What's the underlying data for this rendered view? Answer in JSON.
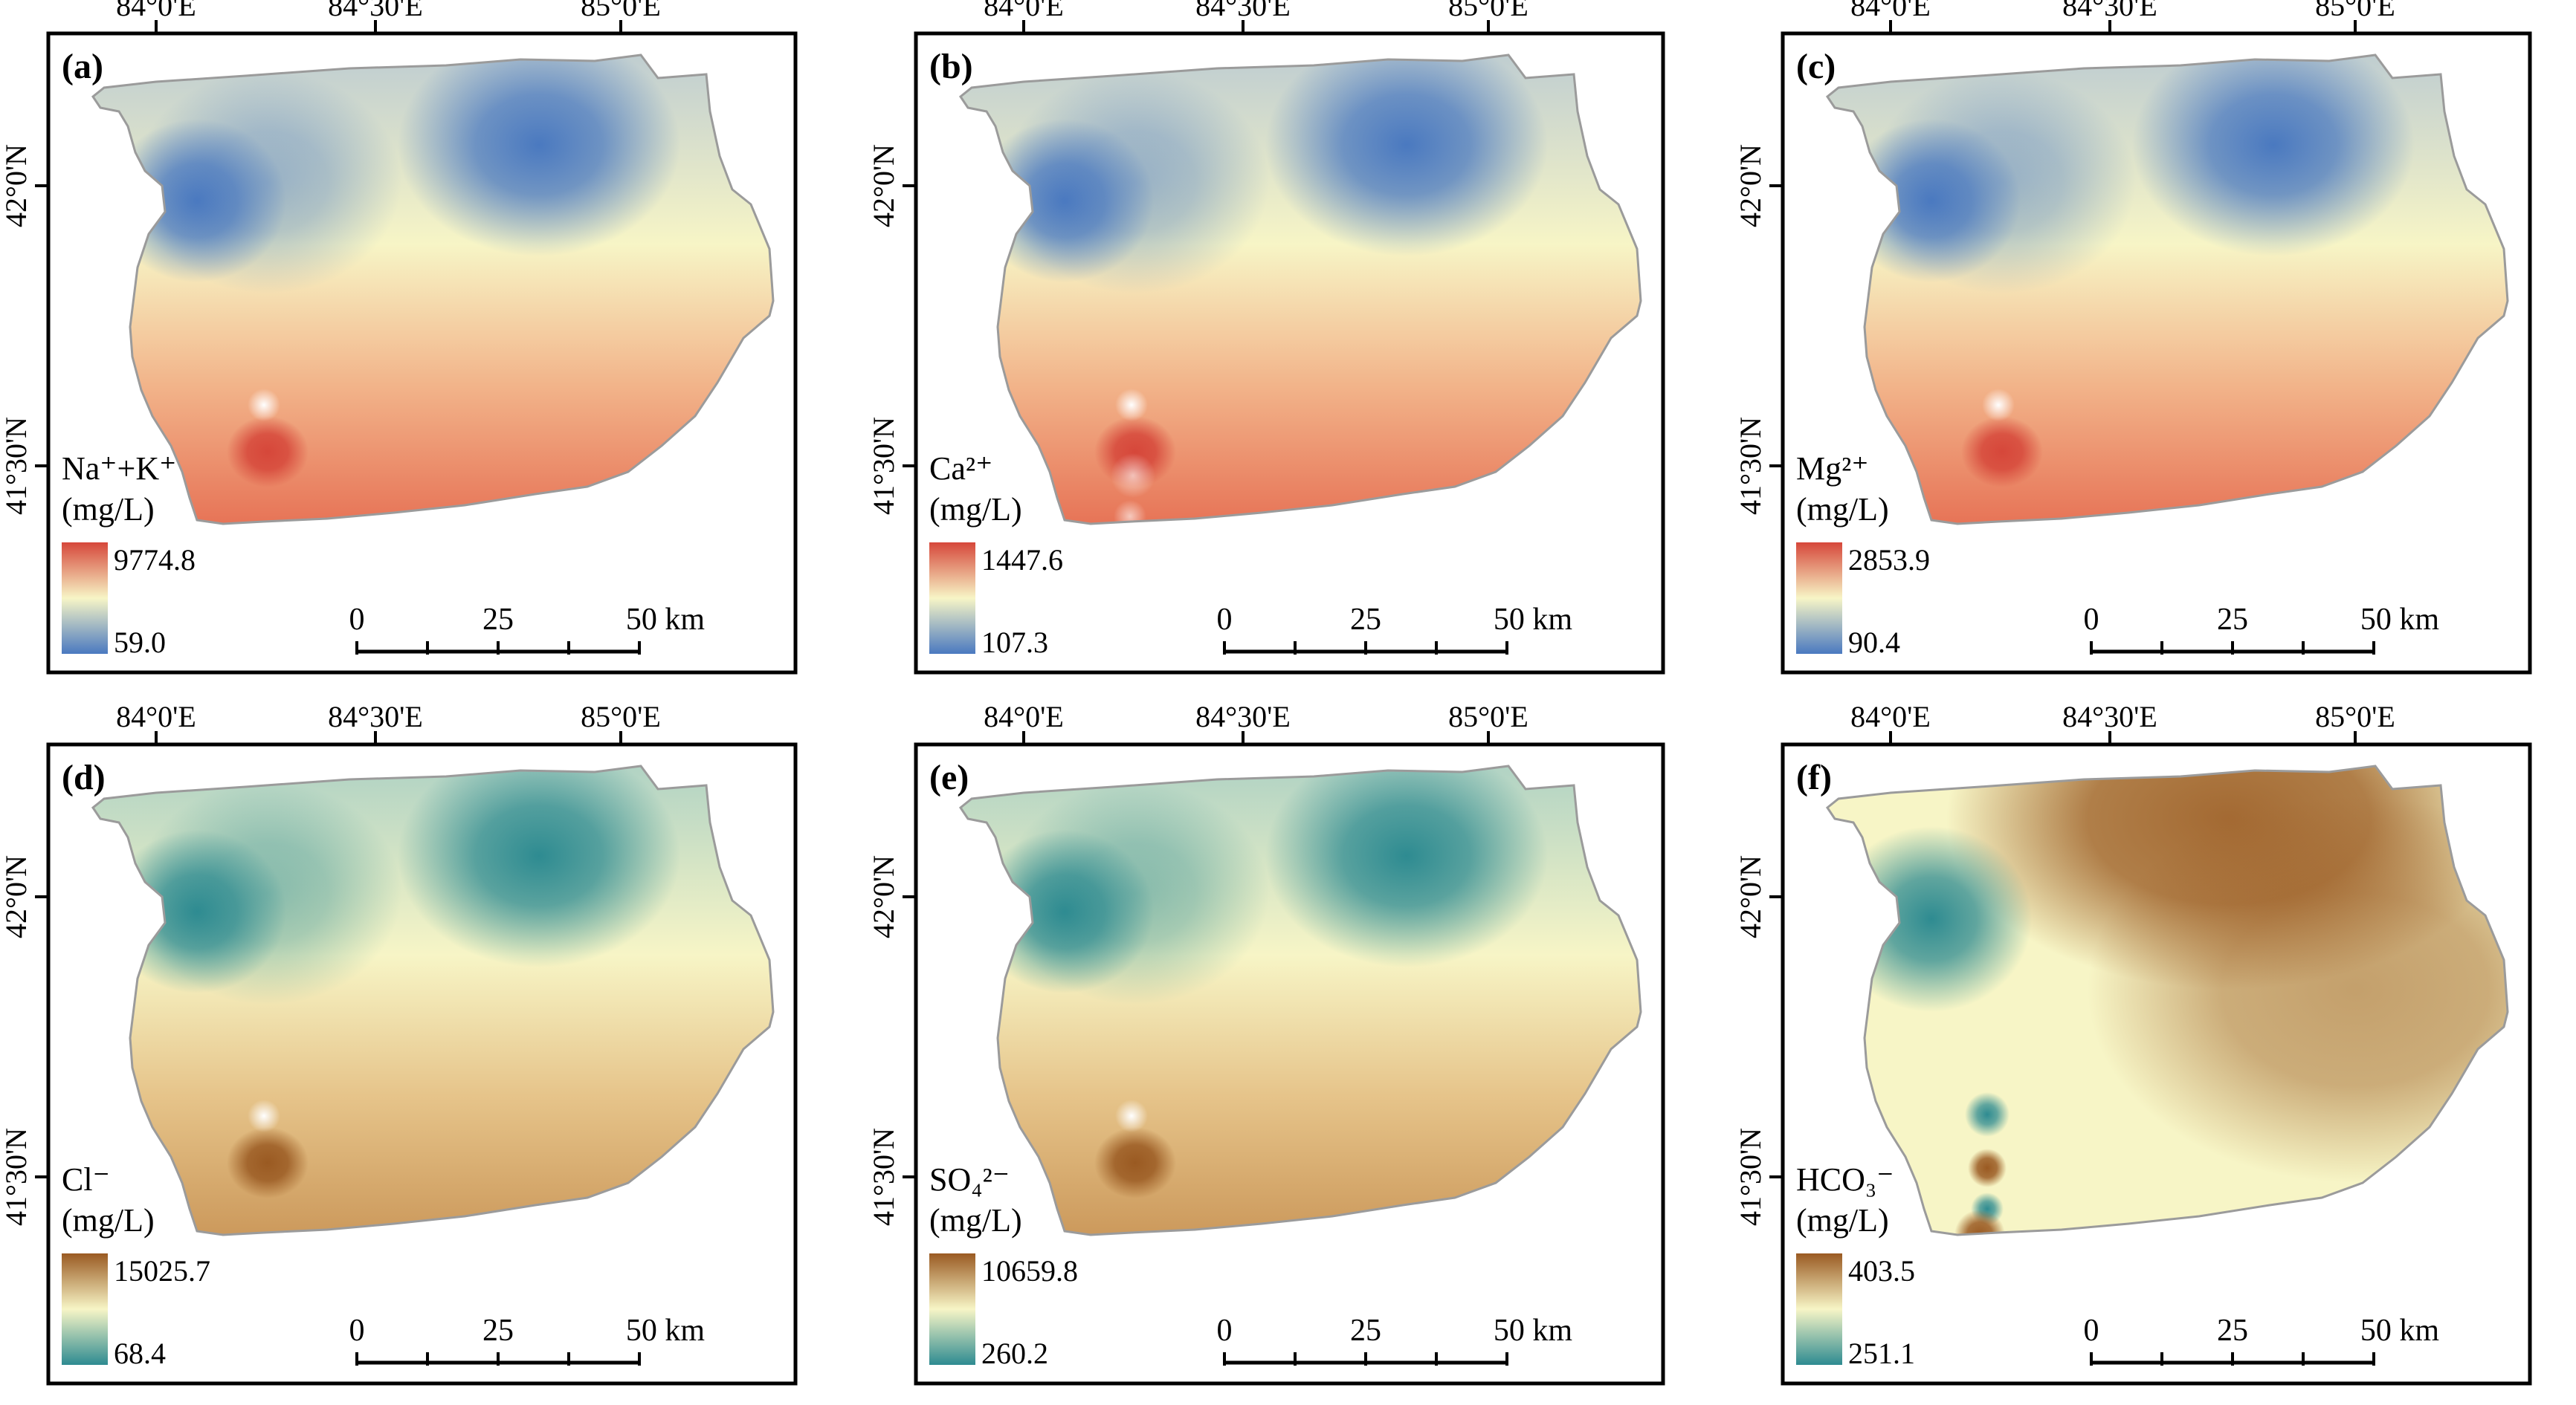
{
  "figure": {
    "lon_labels": [
      "84°0'E",
      "84°30'E",
      "85°0'E"
    ],
    "lat_labels": [
      "42°0'N",
      "41°30'N"
    ],
    "scale_bar": {
      "ticks": [
        "0",
        "25",
        "50 km"
      ]
    },
    "panels": [
      {
        "label": "(a)",
        "variable": "Na⁺+K⁺",
        "unit": "(mg/L)",
        "legend_max": "9774.8",
        "legend_min": "59.0",
        "colormap": "red-yellow-blue",
        "colors": {
          "high": "#d6473a",
          "mid": "#f7f5c6",
          "low": "#4a79c0"
        }
      },
      {
        "label": "(b)",
        "variable": "Ca²⁺",
        "unit": "(mg/L)",
        "legend_max": "1447.6",
        "legend_min": "107.3",
        "colormap": "red-yellow-blue",
        "colors": {
          "high": "#d6473a",
          "mid": "#f7f5c6",
          "low": "#4a79c0"
        }
      },
      {
        "label": "(c)",
        "variable": "Mg²⁺",
        "unit": "(mg/L)",
        "legend_max": "2853.9",
        "legend_min": "90.4",
        "colormap": "red-yellow-blue",
        "colors": {
          "high": "#d6473a",
          "mid": "#f7f5c6",
          "low": "#4a79c0"
        }
      },
      {
        "label": "(d)",
        "variable": "Cl⁻",
        "unit": "(mg/L)",
        "legend_max": "15025.7",
        "legend_min": "68.4",
        "colormap": "brown-yellow-teal",
        "colors": {
          "high": "#9a5a22",
          "mid": "#f7f5c6",
          "low": "#2e8b91"
        }
      },
      {
        "label": "(e)",
        "variable": "SO₄²⁻",
        "unit": "(mg/L)",
        "legend_max": "10659.8",
        "legend_min": "260.2",
        "colormap": "brown-yellow-teal",
        "colors": {
          "high": "#9a5a22",
          "mid": "#f7f5c6",
          "low": "#2e8b91"
        }
      },
      {
        "label": "(f)",
        "variable": "HCO₃⁻",
        "unit": "(mg/L)",
        "legend_max": "403.5",
        "legend_min": "251.1",
        "colormap": "brown-yellow-teal",
        "colors": {
          "high": "#9a5a22",
          "mid": "#f7f5c6",
          "low": "#2e8b91"
        }
      }
    ]
  }
}
